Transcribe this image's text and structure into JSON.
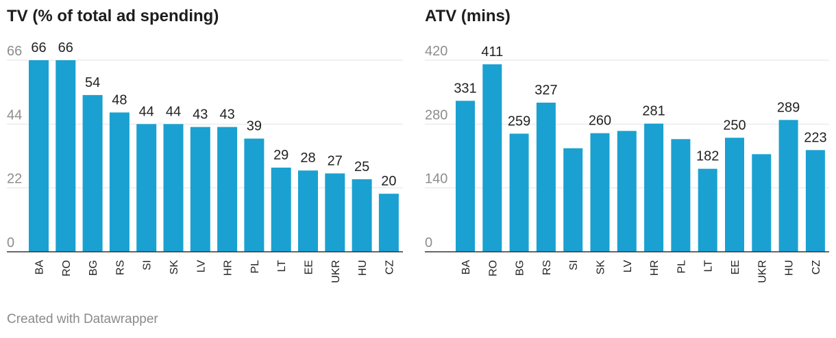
{
  "footer": "Created with Datawrapper",
  "colors": {
    "bar": "#1aa1d1",
    "grid": "#e2e2e2",
    "axis": "#333333",
    "tick": "#8d8d8d",
    "label": "#222222"
  },
  "chart_data": [
    {
      "type": "bar",
      "title": "TV (% of total ad spending)",
      "categories": [
        "BA",
        "RO",
        "BG",
        "RS",
        "SI",
        "SK",
        "LV",
        "HR",
        "PL",
        "LT",
        "EE",
        "UKR",
        "HU",
        "CZ"
      ],
      "values": [
        66,
        66,
        54,
        48,
        44,
        44,
        43,
        43,
        39,
        29,
        28,
        27,
        25,
        20
      ],
      "value_labels": [
        "66",
        "66",
        "54",
        "48",
        "44",
        "44",
        "43",
        "43",
        "39",
        "29",
        "28",
        "27",
        "25",
        "20"
      ],
      "yticks": [
        0,
        22,
        44,
        66
      ],
      "ylim": [
        0,
        66
      ],
      "grid": true
    },
    {
      "type": "bar",
      "title": "ATV (mins)",
      "categories": [
        "BA",
        "RO",
        "BG",
        "RS",
        "SI",
        "SK",
        "LV",
        "HR",
        "PL",
        "LT",
        "EE",
        "UKR",
        "HU",
        "CZ"
      ],
      "values": [
        331,
        411,
        259,
        327,
        227,
        260,
        265,
        281,
        247,
        182,
        250,
        214,
        289,
        223
      ],
      "value_labels": [
        "331",
        "411",
        "259",
        "327",
        "",
        "260",
        "",
        "281",
        "",
        "182",
        "250",
        "",
        "289",
        "223"
      ],
      "yticks": [
        0,
        140,
        280,
        420
      ],
      "ylim": [
        0,
        420
      ],
      "grid": true
    }
  ]
}
